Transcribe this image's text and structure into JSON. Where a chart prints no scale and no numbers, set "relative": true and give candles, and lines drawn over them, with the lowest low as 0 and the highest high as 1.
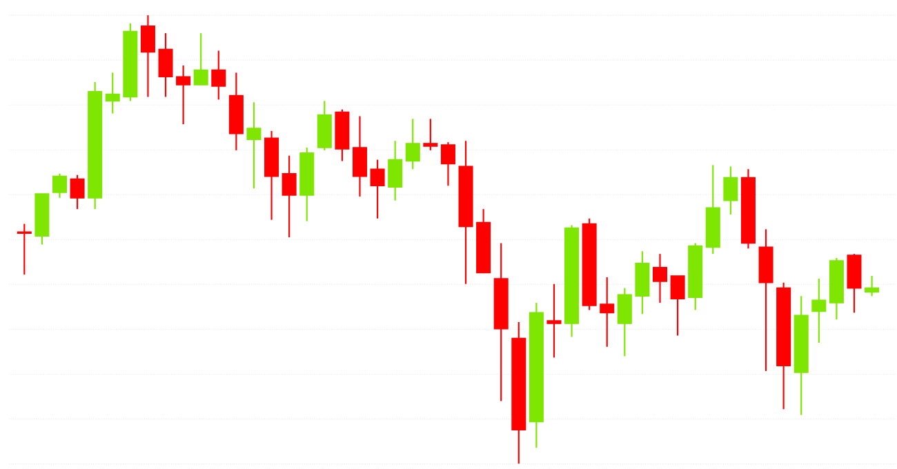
{
  "chart_data": {
    "type": "candlestick",
    "relative": true,
    "grid": "y",
    "categories": [
      null,
      null,
      null,
      null,
      null,
      null,
      null,
      null,
      null,
      null,
      null,
      null,
      null,
      null,
      null,
      null,
      null,
      null,
      null,
      null,
      null,
      null,
      null,
      null,
      null,
      null,
      null,
      null,
      null,
      null,
      null,
      null,
      null,
      null,
      null,
      null,
      null,
      null,
      null,
      null,
      null,
      null,
      null,
      null,
      null,
      null,
      null,
      null,
      null
    ],
    "ohlc": [
      [
        0.517,
        0.535,
        0.422,
        0.514
      ],
      [
        0.508,
        0.602,
        0.489,
        0.602
      ],
      [
        0.605,
        0.647,
        0.593,
        0.641
      ],
      [
        0.635,
        0.644,
        0.568,
        0.593
      ],
      [
        0.593,
        0.851,
        0.568,
        0.83
      ],
      [
        0.809,
        0.872,
        0.781,
        0.824
      ],
      [
        0.818,
        0.982,
        0.809,
        0.964
      ],
      [
        0.976,
        1.0,
        0.818,
        0.918
      ],
      [
        0.924,
        0.96,
        0.818,
        0.863
      ],
      [
        0.863,
        0.888,
        0.757,
        0.845
      ],
      [
        0.845,
        0.96,
        0.845,
        0.878
      ],
      [
        0.878,
        0.921,
        0.812,
        0.842
      ],
      [
        0.821,
        0.872,
        0.699,
        0.736
      ],
      [
        0.723,
        0.806,
        0.614,
        0.748
      ],
      [
        0.726,
        0.742,
        0.544,
        0.641
      ],
      [
        0.647,
        0.687,
        0.505,
        0.599
      ],
      [
        0.599,
        0.705,
        0.541,
        0.693
      ],
      [
        0.705,
        0.809,
        0.699,
        0.778
      ],
      [
        0.784,
        0.79,
        0.675,
        0.702
      ],
      [
        0.705,
        0.775,
        0.596,
        0.641
      ],
      [
        0.657,
        0.678,
        0.547,
        0.62
      ],
      [
        0.617,
        0.72,
        0.587,
        0.678
      ],
      [
        0.675,
        0.769,
        0.657,
        0.714
      ],
      [
        0.714,
        0.769,
        0.699,
        0.708
      ],
      [
        0.711,
        0.717,
        0.62,
        0.669
      ],
      [
        0.663,
        0.72,
        0.401,
        0.529
      ],
      [
        0.538,
        0.568,
        0.426,
        0.426
      ],
      [
        0.413,
        0.492,
        0.14,
        0.301
      ],
      [
        0.28,
        0.316,
        0.0,
        0.076
      ],
      [
        0.094,
        0.359,
        0.036,
        0.337
      ],
      [
        0.319,
        0.401,
        0.237,
        0.313
      ],
      [
        0.313,
        0.532,
        0.283,
        0.526
      ],
      [
        0.535,
        0.547,
        0.343,
        0.353
      ],
      [
        0.356,
        0.416,
        0.261,
        0.337
      ],
      [
        0.313,
        0.392,
        0.24,
        0.377
      ],
      [
        0.374,
        0.474,
        0.334,
        0.447
      ],
      [
        0.438,
        0.468,
        0.359,
        0.407
      ],
      [
        0.419,
        0.419,
        0.286,
        0.368
      ],
      [
        0.371,
        0.492,
        0.343,
        0.486
      ],
      [
        0.483,
        0.666,
        0.468,
        0.571
      ],
      [
        0.587,
        0.663,
        0.556,
        0.638
      ],
      [
        0.638,
        0.657,
        0.48,
        0.492
      ],
      [
        0.483,
        0.523,
        0.207,
        0.404
      ],
      [
        0.392,
        0.404,
        0.122,
        0.219
      ],
      [
        0.204,
        0.374,
        0.109,
        0.331
      ],
      [
        0.34,
        0.413,
        0.27,
        0.365
      ],
      [
        0.359,
        0.459,
        0.322,
        0.453
      ],
      [
        0.465,
        0.468,
        0.337,
        0.392
      ],
      [
        0.383,
        0.419,
        0.374,
        0.392
      ]
    ],
    "colors": [
      "#ff0000",
      "#7ee600",
      "#7ee600",
      "#ff0000",
      "#7ee600",
      "#7ee600",
      "#7ee600",
      "#ff0000",
      "#ff0000",
      "#ff0000",
      "#7ee600",
      "#ff0000",
      "#ff0000",
      "#7ee600",
      "#ff0000",
      "#ff0000",
      "#7ee600",
      "#7ee600",
      "#ff0000",
      "#ff0000",
      "#ff0000",
      "#7ee600",
      "#7ee600",
      "#ff0000",
      "#ff0000",
      "#ff0000",
      "#ff0000",
      "#ff0000",
      "#ff0000",
      "#7ee600",
      "#ff0000",
      "#7ee600",
      "#ff0000",
      "#ff0000",
      "#7ee600",
      "#7ee600",
      "#ff0000",
      "#ff0000",
      "#7ee600",
      "#7ee600",
      "#7ee600",
      "#ff0000",
      "#ff0000",
      "#ff0000",
      "#7ee600",
      "#7ee600",
      "#7ee600",
      "#ff0000",
      "#7ee600"
    ]
  }
}
